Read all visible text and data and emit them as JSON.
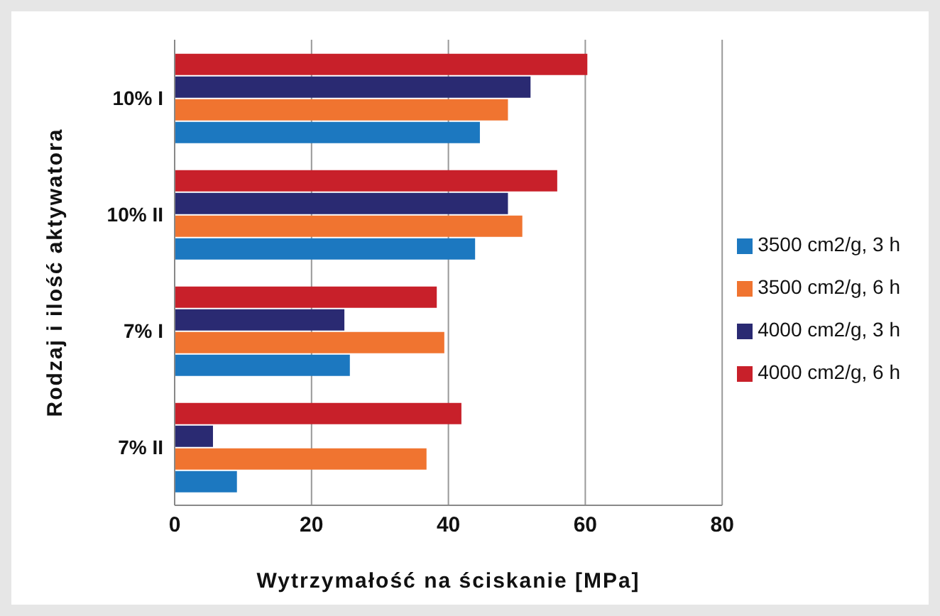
{
  "chart_data": {
    "type": "bar",
    "orientation": "horizontal",
    "xlabel": "Wytrzymałość na ściskanie [MPa]",
    "ylabel": "Rodzaj i ilość aktywatora",
    "categories": [
      "10% I",
      "10% II",
      "7% I",
      "7% II"
    ],
    "series": [
      {
        "name": "4000 cm2/g,  6 h",
        "color": "#c8202a",
        "values": [
          60.3,
          55.9,
          38.3,
          41.9
        ]
      },
      {
        "name": "4000 cm2/g,  3 h",
        "color": "#2a2a72",
        "values": [
          52.0,
          48.7,
          24.8,
          5.6
        ]
      },
      {
        "name": "3500 cm2/g,  6 h",
        "color": "#f07430",
        "values": [
          48.7,
          50.8,
          39.4,
          36.8
        ]
      },
      {
        "name": "3500 cm2/g,  3 h",
        "color": "#1c78c0",
        "values": [
          44.6,
          43.9,
          25.6,
          9.1
        ]
      }
    ],
    "xlim": [
      0,
      80
    ],
    "xticks": [
      0,
      20,
      40,
      60,
      80
    ],
    "grid": "x",
    "legend": "right"
  }
}
